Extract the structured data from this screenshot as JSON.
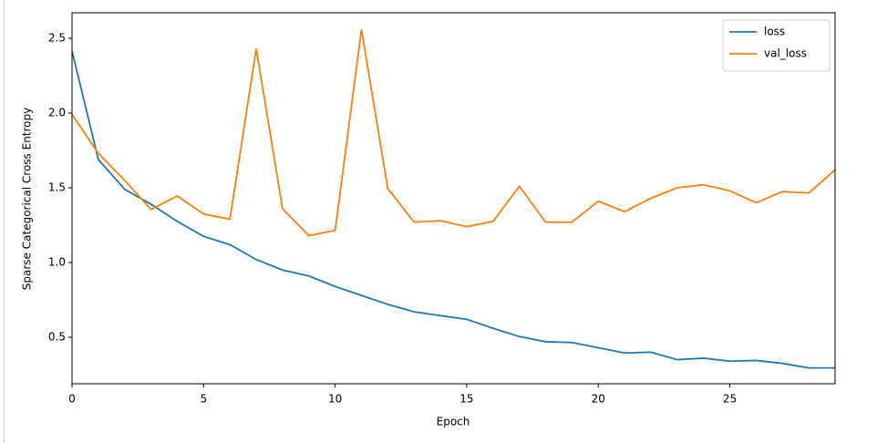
{
  "chart_data": {
    "type": "line",
    "x_label": "Epoch",
    "y_label": "Sparse Categorical Cross Entropy",
    "x": [
      0,
      1,
      2,
      3,
      4,
      5,
      6,
      7,
      8,
      9,
      10,
      11,
      12,
      13,
      14,
      15,
      16,
      17,
      18,
      19,
      20,
      21,
      22,
      23,
      24,
      25,
      26,
      27,
      28,
      29
    ],
    "series": [
      {
        "name": "loss",
        "color": "#1f77b4",
        "values": [
          2.415,
          1.689,
          1.49,
          1.39,
          1.275,
          1.175,
          1.12,
          1.02,
          0.95,
          0.91,
          0.84,
          0.78,
          0.72,
          0.67,
          0.645,
          0.62,
          0.56,
          0.505,
          0.47,
          0.465,
          0.43,
          0.395,
          0.4,
          0.35,
          0.36,
          0.34,
          0.345,
          0.325,
          0.295,
          0.295
        ]
      },
      {
        "name": "val_loss",
        "color": "#ff7f0e",
        "values": [
          1.99,
          1.73,
          1.55,
          1.355,
          1.445,
          1.325,
          1.29,
          2.43,
          1.36,
          1.18,
          1.215,
          2.56,
          1.495,
          1.27,
          1.28,
          1.24,
          1.275,
          1.51,
          1.27,
          1.27,
          1.41,
          1.34,
          1.43,
          1.5,
          1.52,
          1.48,
          1.4,
          1.475,
          1.465,
          1.62
        ]
      }
    ],
    "xlim": [
      0,
      29
    ],
    "xticks": [
      0,
      5,
      10,
      15,
      20,
      25
    ],
    "ylim": [
      0.189,
      2.671
    ],
    "yticks": [
      {
        "value": 0.5,
        "label": "0.5"
      },
      {
        "value": 1.0,
        "label": "1.0"
      },
      {
        "value": 1.5,
        "label": "1.5"
      },
      {
        "value": 2.0,
        "label": "2.0"
      },
      {
        "value": 2.5,
        "label": "2.5"
      }
    ],
    "legend": "upper right"
  }
}
